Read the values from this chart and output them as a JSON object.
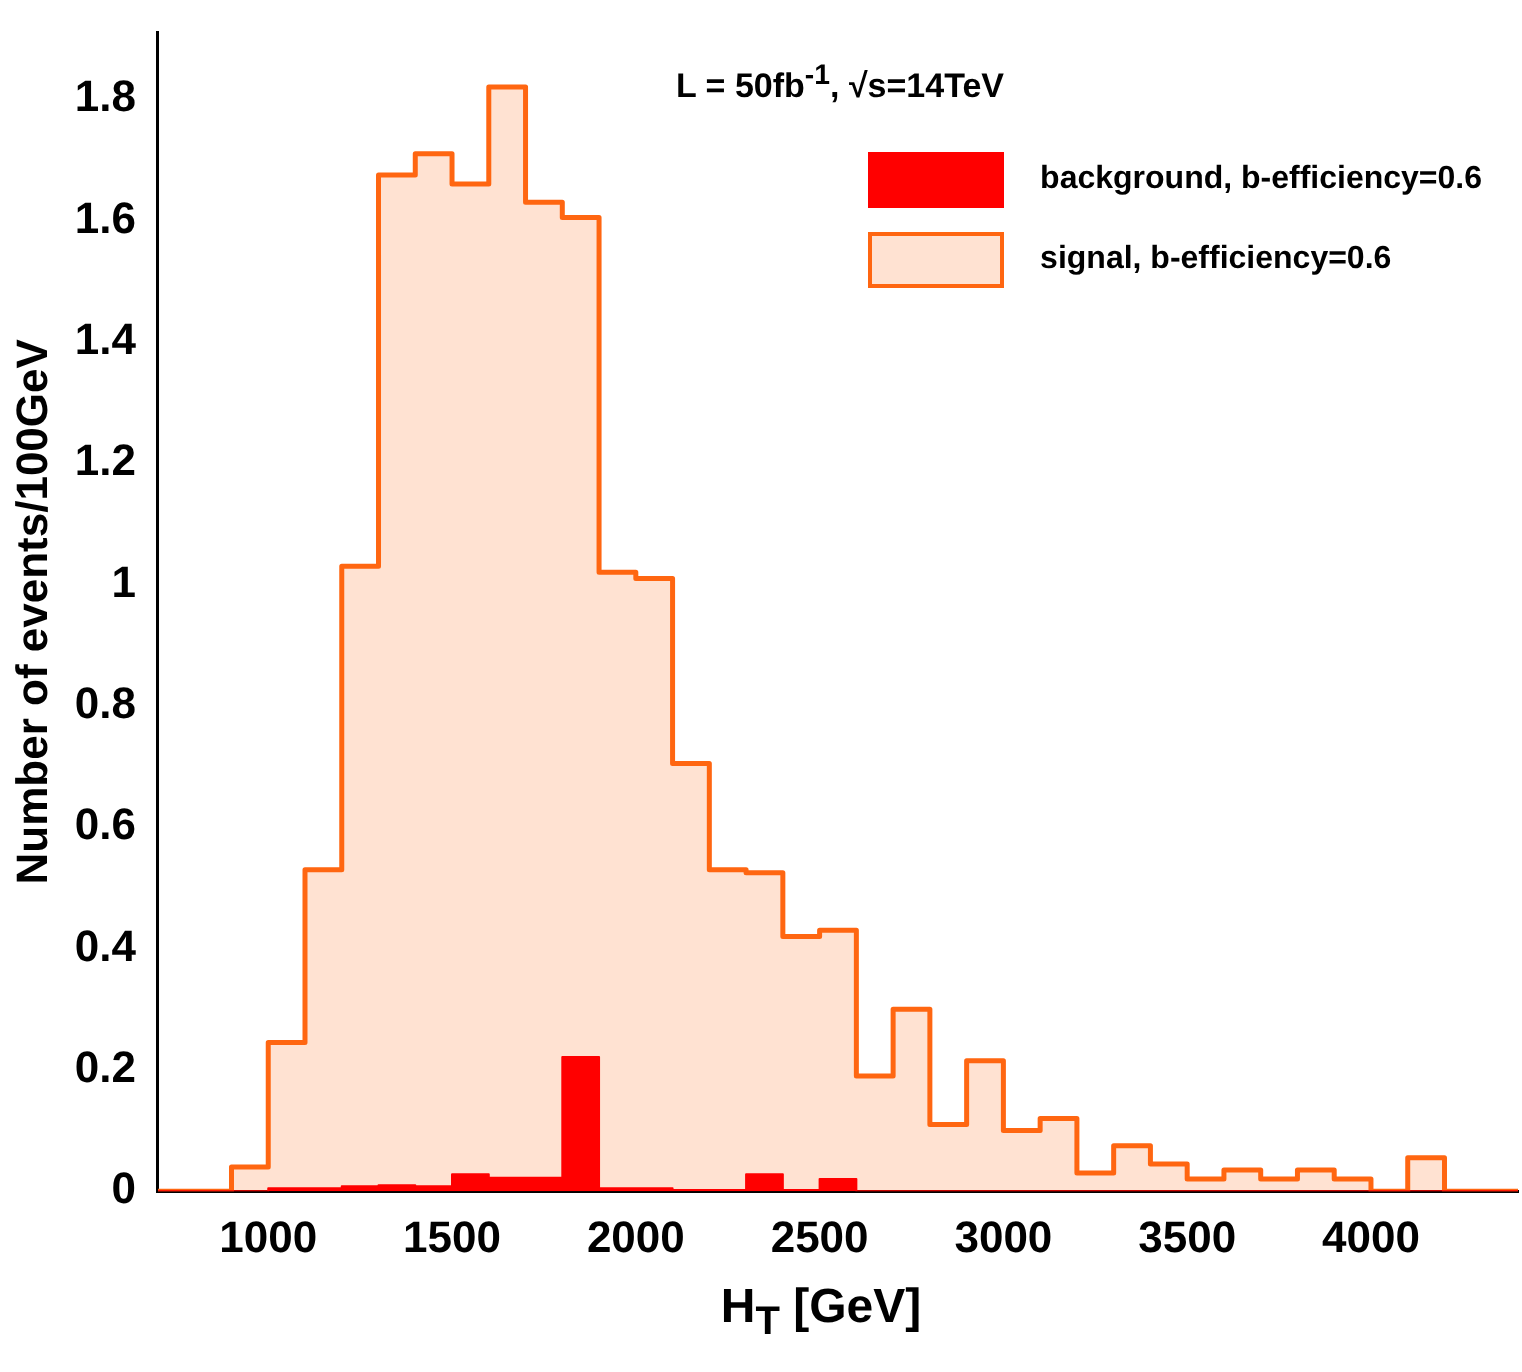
{
  "chart_data": {
    "type": "histogram",
    "xlabel": "H$_{T}$  [GeV]",
    "ylabel": "Number of events/100GeV",
    "annotations": [
      "L = 50fb$^{-1}$, √s=14TeV"
    ],
    "bins": [
      700,
      800,
      900,
      1000,
      1100,
      1200,
      1300,
      1400,
      1500,
      1600,
      1700,
      1800,
      1900,
      2000,
      2100,
      2200,
      2300,
      2400,
      2500,
      2600,
      2700,
      2800,
      2900,
      3000,
      3100,
      3200,
      3300,
      3400,
      3500,
      3600,
      3700,
      3800,
      3900,
      4000,
      4100,
      4200,
      4300,
      4400
    ],
    "series": [
      {
        "name": "background, b-efficiency=0.6",
        "color": "#ff0000",
        "values": [
          0,
          0,
          0,
          0.005,
          0.005,
          0.008,
          0.01,
          0.008,
          0.028,
          0.022,
          0.022,
          0.221,
          0.005,
          0.005,
          0.002,
          0.002,
          0.028,
          0.002,
          0.02,
          0,
          0,
          0,
          0,
          0,
          0,
          0,
          0,
          0,
          0,
          0,
          0,
          0,
          0,
          0,
          0,
          0,
          0
        ]
      },
      {
        "name": "signal, b-efficiency=0.6",
        "color": "#ff6611",
        "values": [
          0,
          0,
          0.04,
          0.245,
          0.53,
          1.03,
          1.675,
          1.71,
          1.66,
          1.82,
          1.63,
          1.605,
          1.02,
          1.01,
          0.705,
          0.53,
          0.525,
          0.42,
          0.43,
          0.19,
          0.3,
          0.11,
          0.215,
          0.1,
          0.12,
          0.03,
          0.075,
          0.045,
          0.02,
          0.035,
          0.02,
          0.035,
          0.02,
          0,
          0.055,
          0,
          0
        ]
      }
    ],
    "xlim": [
      700,
      4400
    ],
    "xticks": [
      1000,
      1500,
      2000,
      2500,
      3000,
      3500,
      4000
    ],
    "ylim": [
      0,
      1.91
    ],
    "yticks": [
      0,
      0.2,
      0.4,
      0.6,
      0.8,
      1,
      1.2,
      1.4,
      1.6,
      1.8
    ],
    "legend": "top right",
    "grid": false
  }
}
